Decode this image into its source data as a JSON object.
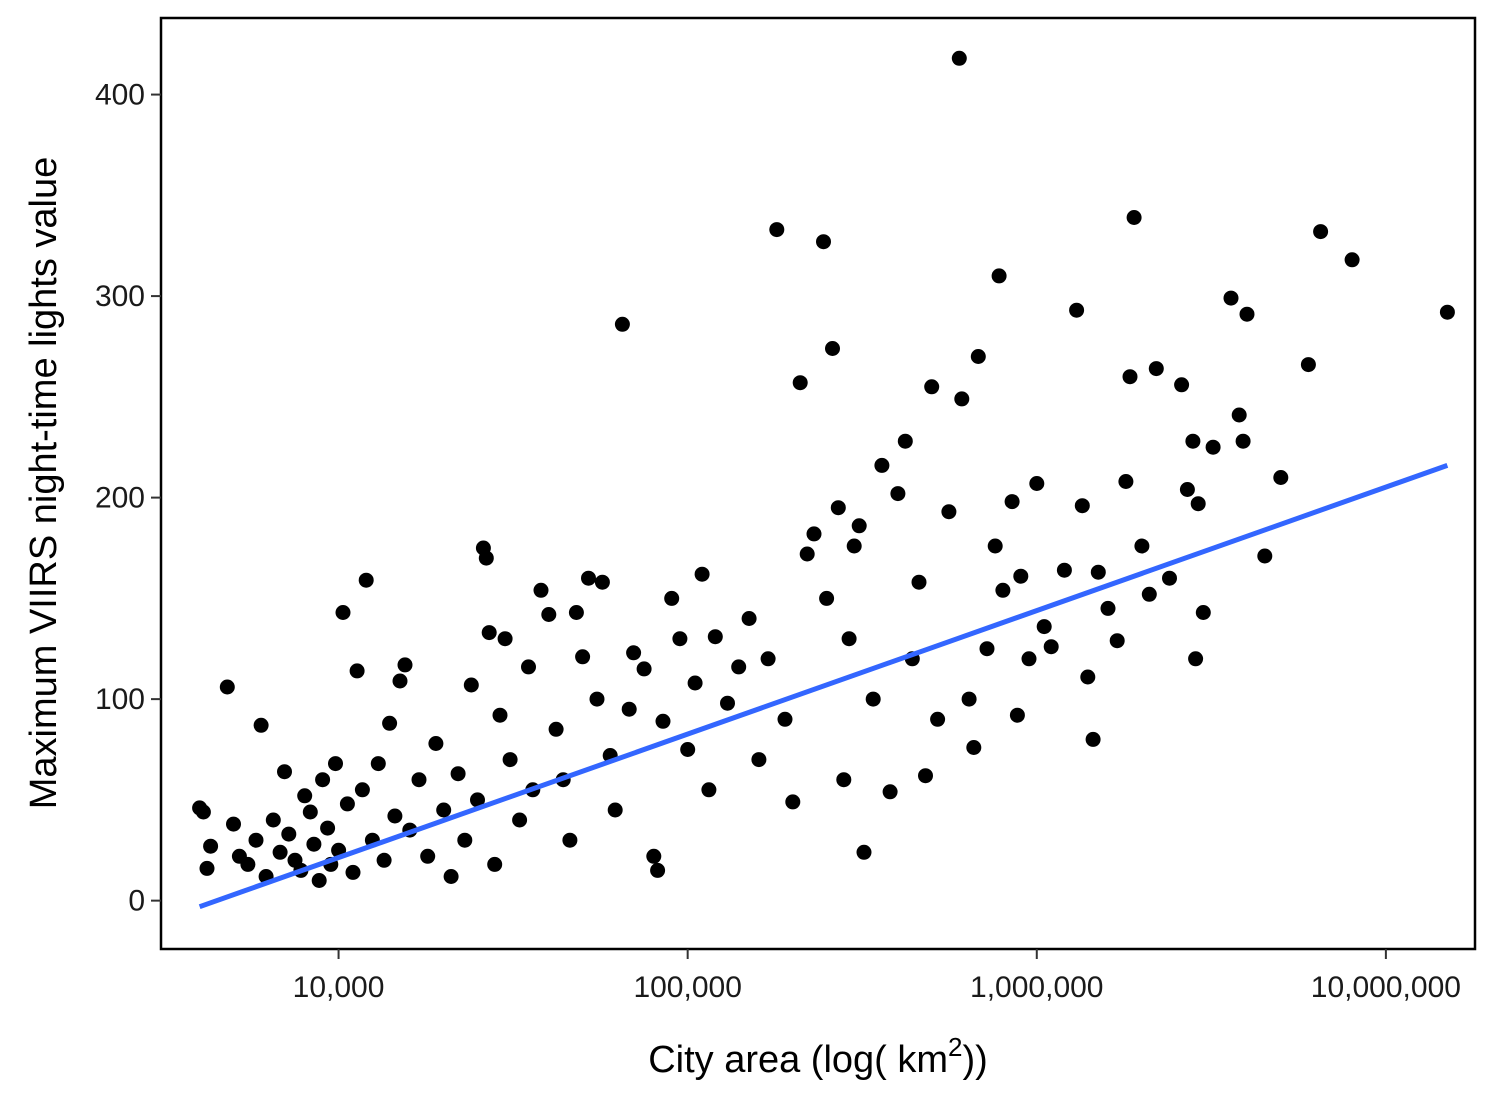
{
  "chart_data": {
    "type": "scatter",
    "title": "",
    "xlabel": "City area (log( km",
    "xlabel_superscript": "2",
    "xlabel_suffix": "))",
    "ylabel": "Maximum VIIRS night-time lights value",
    "x_scale": "log10",
    "xlim": [
      3100,
      18000000
    ],
    "ylim": [
      -24,
      438
    ],
    "x_ticks": [
      {
        "value": 10000,
        "label": "10,000"
      },
      {
        "value": 100000,
        "label": "100,000"
      },
      {
        "value": 1000000,
        "label": "1,000,000"
      },
      {
        "value": 10000000,
        "label": "10,000,000"
      }
    ],
    "y_ticks": [
      {
        "value": 0,
        "label": "0"
      },
      {
        "value": 100,
        "label": "100"
      },
      {
        "value": 200,
        "label": "200"
      },
      {
        "value": 300,
        "label": "300"
      },
      {
        "value": 400,
        "label": "400"
      }
    ],
    "grid": false,
    "legend": "none",
    "point_color": "#000000",
    "trend_line_color": "#3366FF",
    "trend_line": {
      "type": "linear fit on log x",
      "start": [
        4000,
        -3
      ],
      "end": [
        15000000,
        216
      ]
    },
    "series": [
      {
        "points": [
          [
            4000,
            46
          ],
          [
            4100,
            44
          ],
          [
            4200,
            16
          ],
          [
            4300,
            27
          ],
          [
            4800,
            106
          ],
          [
            5000,
            38
          ],
          [
            5200,
            22
          ],
          [
            5500,
            18
          ],
          [
            5800,
            30
          ],
          [
            6000,
            87
          ],
          [
            6200,
            12
          ],
          [
            6500,
            40
          ],
          [
            6800,
            24
          ],
          [
            7000,
            64
          ],
          [
            7200,
            33
          ],
          [
            7500,
            20
          ],
          [
            7800,
            15
          ],
          [
            8000,
            52
          ],
          [
            8300,
            44
          ],
          [
            8500,
            28
          ],
          [
            8800,
            10
          ],
          [
            9000,
            60
          ],
          [
            9300,
            36
          ],
          [
            9500,
            18
          ],
          [
            9800,
            68
          ],
          [
            10000,
            25
          ],
          [
            10300,
            143
          ],
          [
            10600,
            48
          ],
          [
            11000,
            14
          ],
          [
            11300,
            114
          ],
          [
            11700,
            55
          ],
          [
            12000,
            159
          ],
          [
            12500,
            30
          ],
          [
            13000,
            68
          ],
          [
            13500,
            20
          ],
          [
            14000,
            88
          ],
          [
            14500,
            42
          ],
          [
            15000,
            109
          ],
          [
            15500,
            117
          ],
          [
            16000,
            35
          ],
          [
            17000,
            60
          ],
          [
            18000,
            22
          ],
          [
            19000,
            78
          ],
          [
            20000,
            45
          ],
          [
            21000,
            12
          ],
          [
            22000,
            63
          ],
          [
            23000,
            30
          ],
          [
            24000,
            107
          ],
          [
            25000,
            50
          ],
          [
            26000,
            175
          ],
          [
            26500,
            170
          ],
          [
            27000,
            133
          ],
          [
            28000,
            18
          ],
          [
            29000,
            92
          ],
          [
            30000,
            130
          ],
          [
            31000,
            70
          ],
          [
            33000,
            40
          ],
          [
            35000,
            116
          ],
          [
            36000,
            55
          ],
          [
            38000,
            154
          ],
          [
            40000,
            142
          ],
          [
            42000,
            85
          ],
          [
            44000,
            60
          ],
          [
            46000,
            30
          ],
          [
            48000,
            143
          ],
          [
            50000,
            121
          ],
          [
            52000,
            160
          ],
          [
            55000,
            100
          ],
          [
            57000,
            158
          ],
          [
            60000,
            72
          ],
          [
            62000,
            45
          ],
          [
            65000,
            286
          ],
          [
            68000,
            95
          ],
          [
            70000,
            123
          ],
          [
            75000,
            115
          ],
          [
            80000,
            22
          ],
          [
            82000,
            15
          ],
          [
            85000,
            89
          ],
          [
            90000,
            150
          ],
          [
            95000,
            130
          ],
          [
            100000,
            75
          ],
          [
            105000,
            108
          ],
          [
            110000,
            162
          ],
          [
            115000,
            55
          ],
          [
            120000,
            131
          ],
          [
            130000,
            98
          ],
          [
            140000,
            116
          ],
          [
            150000,
            140
          ],
          [
            160000,
            70
          ],
          [
            170000,
            120
          ],
          [
            180000,
            333
          ],
          [
            190000,
            90
          ],
          [
            200000,
            49
          ],
          [
            210000,
            257
          ],
          [
            220000,
            172
          ],
          [
            230000,
            182
          ],
          [
            245000,
            327
          ],
          [
            250000,
            150
          ],
          [
            260000,
            274
          ],
          [
            270000,
            195
          ],
          [
            280000,
            60
          ],
          [
            290000,
            130
          ],
          [
            300000,
            176
          ],
          [
            310000,
            186
          ],
          [
            320000,
            24
          ],
          [
            340000,
            100
          ],
          [
            360000,
            216
          ],
          [
            380000,
            54
          ],
          [
            400000,
            202
          ],
          [
            420000,
            228
          ],
          [
            440000,
            120
          ],
          [
            460000,
            158
          ],
          [
            480000,
            62
          ],
          [
            500000,
            255
          ],
          [
            520000,
            90
          ],
          [
            560000,
            193
          ],
          [
            600000,
            418
          ],
          [
            610000,
            249
          ],
          [
            640000,
            100
          ],
          [
            660000,
            76
          ],
          [
            680000,
            270
          ],
          [
            720000,
            125
          ],
          [
            760000,
            176
          ],
          [
            780000,
            310
          ],
          [
            800000,
            154
          ],
          [
            850000,
            198
          ],
          [
            880000,
            92
          ],
          [
            900000,
            161
          ],
          [
            950000,
            120
          ],
          [
            1000000,
            207
          ],
          [
            1050000,
            136
          ],
          [
            1100000,
            126
          ],
          [
            1200000,
            164
          ],
          [
            1300000,
            293
          ],
          [
            1350000,
            196
          ],
          [
            1400000,
            111
          ],
          [
            1450000,
            80
          ],
          [
            1500000,
            163
          ],
          [
            1600000,
            145
          ],
          [
            1700000,
            129
          ],
          [
            1800000,
            208
          ],
          [
            1850000,
            260
          ],
          [
            1900000,
            339
          ],
          [
            2000000,
            176
          ],
          [
            2100000,
            152
          ],
          [
            2200000,
            264
          ],
          [
            2400000,
            160
          ],
          [
            2600000,
            256
          ],
          [
            2700000,
            204
          ],
          [
            2800000,
            228
          ],
          [
            2850000,
            120
          ],
          [
            2900000,
            197
          ],
          [
            3000000,
            143
          ],
          [
            3200000,
            225
          ],
          [
            3600000,
            299
          ],
          [
            3800000,
            241
          ],
          [
            3900000,
            228
          ],
          [
            4000000,
            291
          ],
          [
            4500000,
            171
          ],
          [
            5000000,
            210
          ],
          [
            6000000,
            266
          ],
          [
            6500000,
            332
          ],
          [
            8000000,
            318
          ],
          [
            15000000,
            292
          ]
        ]
      }
    ]
  }
}
